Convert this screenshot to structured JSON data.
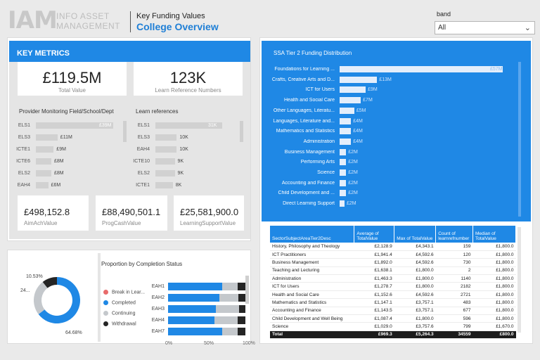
{
  "header": {
    "logo_mark": "IAM",
    "logo_line1": "INFO ASSET",
    "logo_line2": "MANAGEMENT",
    "subtitle": "Key Funding Values",
    "title": "College Overview",
    "band_label": "band",
    "band_value": "All"
  },
  "key_metrics": {
    "title": "KEY METRICS",
    "total_value": "£119.5M",
    "total_value_label": "Total Value",
    "learn_refs": "123K",
    "learn_refs_label": "Learn Reference Numbers",
    "aim_ach": "£498,152.8",
    "aim_ach_label": "AimAchValue",
    "prog_cash": "£88,490,501.1",
    "prog_cash_label": "ProgCashValue",
    "learning_support": "£25,581,900.0",
    "learning_support_label": "LearningSupportValue"
  },
  "provider_chart": {
    "title": "Provider Monitoring Field/School/Dept",
    "rows": [
      {
        "label": "ELS1",
        "value": "£39M",
        "fraction": 1.0
      },
      {
        "label": "ELS3",
        "value": "£11M",
        "fraction": 0.28
      },
      {
        "label": "ICTE1",
        "value": "£9M",
        "fraction": 0.23
      },
      {
        "label": "ICTE6",
        "value": "£8M",
        "fraction": 0.2
      },
      {
        "label": "ELS2",
        "value": "£8M",
        "fraction": 0.2
      },
      {
        "label": "EAH4",
        "value": "£6M",
        "fraction": 0.16
      }
    ]
  },
  "learn_chart": {
    "title": "Learn references",
    "rows": [
      {
        "label": "ELS1",
        "value": "31K",
        "fraction": 1.0
      },
      {
        "label": "ELS3",
        "value": "10K",
        "fraction": 0.32
      },
      {
        "label": "EAH4",
        "value": "10K",
        "fraction": 0.32
      },
      {
        "label": "ICTE10",
        "value": "9K",
        "fraction": 0.29
      },
      {
        "label": "ELS2",
        "value": "9K",
        "fraction": 0.29
      },
      {
        "label": "ICTE1",
        "value": "8K",
        "fraction": 0.26
      }
    ]
  },
  "ssa_chart": {
    "title": "SSA Tier 2 Funding Distribution",
    "rows": [
      {
        "label": "Foundations for Learning ...",
        "value": "£57M",
        "fraction": 1.0
      },
      {
        "label": "Crafts, Creative Arts and D...",
        "value": "£13M",
        "fraction": 0.23
      },
      {
        "label": "ICT for Users",
        "value": "£9M",
        "fraction": 0.16
      },
      {
        "label": "Health and Social Care",
        "value": "£7M",
        "fraction": 0.13
      },
      {
        "label": "Other Languages, Literatu...",
        "value": "£5M",
        "fraction": 0.09
      },
      {
        "label": "Languages, Literature and...",
        "value": "£4M",
        "fraction": 0.07
      },
      {
        "label": "Mathematics and Statistics",
        "value": "£4M",
        "fraction": 0.07
      },
      {
        "label": "Administration",
        "value": "£4M",
        "fraction": 0.07
      },
      {
        "label": "Business Management",
        "value": "£2M",
        "fraction": 0.04
      },
      {
        "label": "Performing Arts",
        "value": "£2M",
        "fraction": 0.04
      },
      {
        "label": "Science",
        "value": "£2M",
        "fraction": 0.04
      },
      {
        "label": "Accounting and Finance",
        "value": "£2M",
        "fraction": 0.04
      },
      {
        "label": "Child Development and ...",
        "value": "£2M",
        "fraction": 0.04
      },
      {
        "label": "Direct Learning Support",
        "value": "£2M",
        "fraction": 0.03
      }
    ]
  },
  "table": {
    "headers": [
      "SectorSubjectAreaTier2Desc",
      "Average of TotalValue",
      "Max of TotalValue",
      "Count of learnrefnumber",
      "Median of TotalValue"
    ],
    "rows": [
      [
        "History, Philosophy and Theology",
        "£2,128.9",
        "£4,343.1",
        "159",
        "£1,800.0"
      ],
      [
        "ICT Practitioners",
        "£1,941.4",
        "£4,592.6",
        "120",
        "£1,800.0"
      ],
      [
        "Business Management",
        "£1,892.0",
        "£4,592.6",
        "730",
        "£1,800.0"
      ],
      [
        "Teaching and Lecturing",
        "£1,638.1",
        "£1,800.0",
        "2",
        "£1,800.0"
      ],
      [
        "Administration",
        "£1,463.3",
        "£1,800.0",
        "1140",
        "£1,800.0"
      ],
      [
        "ICT for Users",
        "£1,278.7",
        "£1,800.0",
        "2182",
        "£1,800.0"
      ],
      [
        "Health and Social Care",
        "£1,152.6",
        "£4,592.6",
        "2721",
        "£1,800.0"
      ],
      [
        "Mathematics and Statistics",
        "£1,147.1",
        "£3,757.1",
        "483",
        "£1,800.0"
      ],
      [
        "Accounting and Finance",
        "£1,143.5",
        "£3,757.1",
        "677",
        "£1,800.0"
      ],
      [
        "Child Development and Well Being",
        "£1,087.4",
        "£1,800.0",
        "596",
        "£1,800.0"
      ],
      [
        "Science",
        "£1,029.0",
        "£3,757.6",
        "799",
        "£1,670.0"
      ]
    ],
    "total": [
      "Total",
      "£969.3",
      "£5,264.3",
      "34559",
      "£800.0"
    ]
  },
  "completion": {
    "title": "Proportion by Completion Status",
    "donut_labels": [
      "10.53%",
      "24...",
      "64.68%"
    ],
    "donut": [
      {
        "name": "Completed",
        "fraction": 0.6468,
        "color": "#1f88e5"
      },
      {
        "name": "Continuing",
        "fraction": 0.2479,
        "color": "#c4c8cc"
      },
      {
        "name": "Withdrawal",
        "fraction": 0.1053,
        "color": "#252525"
      }
    ],
    "legend": [
      {
        "label": "Break in Lear...",
        "color": "#e86b6b"
      },
      {
        "label": "Completed",
        "color": "#1f88e5"
      },
      {
        "label": "Continuing",
        "color": "#c4c8cc"
      },
      {
        "label": "Withdrawal",
        "color": "#252525"
      }
    ],
    "rows": [
      {
        "label": "EAH1",
        "segments": [
          0.0,
          0.7,
          0.2,
          0.1
        ]
      },
      {
        "label": "EAH2",
        "segments": [
          0.0,
          0.66,
          0.25,
          0.09
        ]
      },
      {
        "label": "EAH3",
        "segments": [
          0.0,
          0.62,
          0.3,
          0.08
        ]
      },
      {
        "label": "EAH4",
        "segments": [
          0.0,
          0.6,
          0.3,
          0.1
        ]
      },
      {
        "label": "EAH7",
        "segments": [
          0.0,
          0.7,
          0.2,
          0.1
        ]
      }
    ],
    "axis": [
      "0%",
      "50%",
      "100%"
    ]
  }
}
